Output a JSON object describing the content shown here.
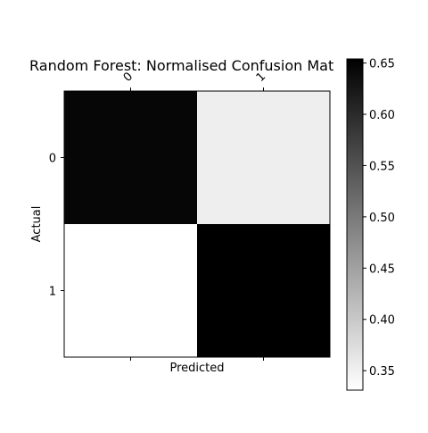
{
  "chart_data": {
    "type": "heatmap",
    "title": "Random Forest: Normalised Confusion Mat",
    "xlabel": "Predicted",
    "ylabel": "Actual",
    "x_categories": [
      "0",
      "1"
    ],
    "y_categories": [
      "0",
      "1"
    ],
    "values": [
      [
        0.647,
        0.353
      ],
      [
        0.331,
        0.654
      ]
    ],
    "colormap": "Greys",
    "color_low": "#ffffff",
    "color_high": "#000000",
    "colorbar": {
      "range": [
        0.331,
        0.654
      ],
      "ticks": [
        0.35,
        0.4,
        0.45,
        0.5,
        0.55,
        0.6,
        0.65
      ],
      "tick_labels": [
        "0.35",
        "0.40",
        "0.45",
        "0.50",
        "0.55",
        "0.60",
        "0.65"
      ]
    },
    "grid": false
  }
}
